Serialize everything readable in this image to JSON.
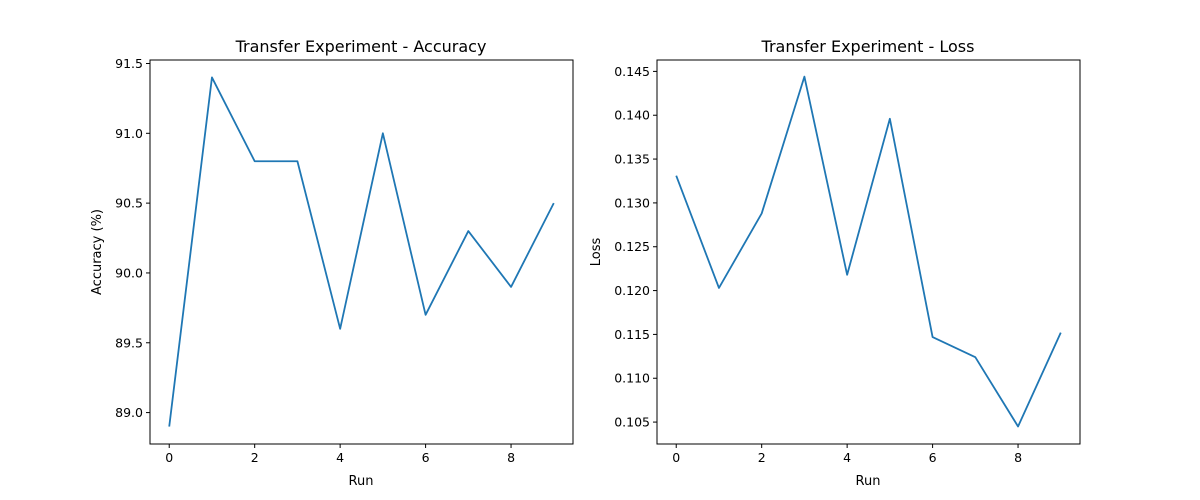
{
  "chart_data": [
    {
      "type": "line",
      "title": "Transfer Experiment - Accuracy",
      "xlabel": "Run",
      "ylabel": "Accuracy (%)",
      "x": [
        0,
        1,
        2,
        3,
        4,
        5,
        6,
        7,
        8,
        9
      ],
      "series": [
        {
          "values": [
            88.9,
            91.4,
            90.8,
            90.8,
            89.6,
            91.0,
            89.7,
            90.3,
            89.9,
            90.5
          ],
          "color": "#1f77b4"
        }
      ],
      "xlim": [
        -0.45,
        9.45
      ],
      "ylim": [
        88.775,
        91.525
      ],
      "xticks": [
        0,
        2,
        4,
        6,
        8
      ],
      "xtick_labels": [
        "0",
        "2",
        "4",
        "6",
        "8"
      ],
      "yticks": [
        89.0,
        89.5,
        90.0,
        90.5,
        91.0,
        91.5
      ],
      "ytick_labels": [
        "89.0",
        "89.5",
        "90.0",
        "90.5",
        "91.0",
        "91.5"
      ],
      "grid": false,
      "legend": "none"
    },
    {
      "type": "line",
      "title": "Transfer Experiment - Loss",
      "xlabel": "Run",
      "ylabel": "Loss",
      "x": [
        0,
        1,
        2,
        3,
        4,
        5,
        6,
        7,
        8,
        9
      ],
      "series": [
        {
          "values": [
            0.1331,
            0.1203,
            0.1288,
            0.1444,
            0.1218,
            0.1396,
            0.1147,
            0.1124,
            0.1045,
            0.1152
          ],
          "color": "#1f77b4"
        }
      ],
      "xlim": [
        -0.45,
        9.45
      ],
      "ylim": [
        0.1025,
        0.1463
      ],
      "xticks": [
        0,
        2,
        4,
        6,
        8
      ],
      "xtick_labels": [
        "0",
        "2",
        "4",
        "6",
        "8"
      ],
      "yticks": [
        0.105,
        0.11,
        0.115,
        0.12,
        0.125,
        0.13,
        0.135,
        0.14,
        0.145
      ],
      "ytick_labels": [
        "0.105",
        "0.110",
        "0.115",
        "0.120",
        "0.125",
        "0.130",
        "0.135",
        "0.140",
        "0.145"
      ],
      "grid": false,
      "legend": "none"
    }
  ]
}
